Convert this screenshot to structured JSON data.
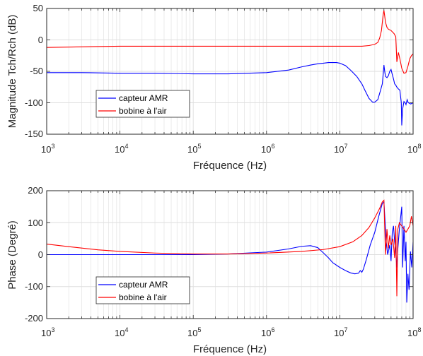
{
  "chart_data": [
    {
      "type": "line",
      "xscale": "log",
      "xlim": [
        1000,
        100000000
      ],
      "ylim": [
        -150,
        50
      ],
      "xlabel": "Fréquence (Hz)",
      "ylabel": "Magnitude Tch/Rch (dB)",
      "xticks": [
        {
          "base": "10",
          "exp": "3"
        },
        {
          "base": "10",
          "exp": "4"
        },
        {
          "base": "10",
          "exp": "5"
        },
        {
          "base": "10",
          "exp": "6"
        },
        {
          "base": "10",
          "exp": "7"
        },
        {
          "base": "10",
          "exp": "8"
        }
      ],
      "yticks": [
        "50",
        "0",
        "-50",
        "-100",
        "-150"
      ],
      "grid": true,
      "legend_location": "lower-left",
      "series": [
        {
          "name": "capteur AMR",
          "color": "#0000ff",
          "x": [
            1000,
            3000,
            10000,
            30000,
            100000,
            300000,
            1000000,
            2000000,
            3000000,
            4000000,
            5000000,
            6000000,
            7000000,
            8000000,
            9000000,
            10000000,
            12000000,
            14000000,
            17000000,
            20000000,
            22000000,
            25000000,
            28000000,
            30000000,
            33000000,
            36000000,
            38000000,
            39000000,
            40000000,
            41000000,
            42000000,
            44000000,
            46000000,
            48000000,
            50000000,
            52000000,
            54000000,
            56000000,
            58000000,
            60000000,
            63000000,
            66000000,
            69000000,
            70000000,
            72000000,
            75000000,
            78000000,
            80000000,
            83000000,
            86000000,
            90000000,
            93000000,
            96000000,
            100000000
          ],
          "y": [
            -52,
            -52,
            -53,
            -53,
            -54,
            -54,
            -52,
            -48,
            -43,
            -40,
            -38,
            -37,
            -36,
            -36,
            -36,
            -37,
            -41,
            -48,
            -58,
            -70,
            -80,
            -93,
            -99,
            -99,
            -95,
            -80,
            -70,
            -55,
            -40,
            -50,
            -58,
            -60,
            -57,
            -50,
            -47,
            -55,
            -62,
            -70,
            -72,
            -75,
            -78,
            -80,
            -100,
            -136,
            -110,
            -98,
            -100,
            -103,
            -95,
            -100,
            -101,
            -102,
            -101,
            -100
          ]
        },
        {
          "name": "bobine à l'air",
          "color": "#ff0000",
          "x": [
            1000,
            3000,
            10000,
            30000,
            100000,
            300000,
            1000000,
            3000000,
            6000000,
            10000000,
            15000000,
            20000000,
            25000000,
            30000000,
            33000000,
            35000000,
            37000000,
            39000000,
            40000000,
            41000000,
            42000000,
            44000000,
            46000000,
            50000000,
            55000000,
            58000000,
            60000000,
            63000000,
            66000000,
            70000000,
            75000000,
            80000000,
            85000000,
            90000000,
            95000000,
            100000000
          ],
          "y": [
            -12,
            -11,
            -10,
            -10,
            -10,
            -10,
            -10,
            -10,
            -10,
            -10,
            -10,
            -10,
            -9,
            -7,
            -4,
            3,
            15,
            40,
            47,
            38,
            28,
            20,
            17,
            15,
            10,
            5,
            -35,
            -20,
            -30,
            -45,
            -53,
            -52,
            -42,
            -30,
            -25,
            -22
          ]
        }
      ]
    },
    {
      "type": "line",
      "xscale": "log",
      "xlim": [
        1000,
        100000000
      ],
      "ylim": [
        -200,
        200
      ],
      "xlabel": "Fréquence (Hz)",
      "ylabel": "Phase (Degré)",
      "xticks": [
        {
          "base": "10",
          "exp": "3"
        },
        {
          "base": "10",
          "exp": "4"
        },
        {
          "base": "10",
          "exp": "5"
        },
        {
          "base": "10",
          "exp": "6"
        },
        {
          "base": "10",
          "exp": "7"
        },
        {
          "base": "10",
          "exp": "8"
        }
      ],
      "yticks": [
        "200",
        "100",
        "0",
        "-100",
        "-200"
      ],
      "grid": true,
      "legend_location": "lower-left",
      "series": [
        {
          "name": "capteur AMR",
          "color": "#0000ff",
          "x": [
            1000,
            3000,
            10000,
            30000,
            100000,
            300000,
            1000000,
            2000000,
            3000000,
            4000000,
            5000000,
            6000000,
            7000000,
            8000000,
            10000000,
            12000000,
            14000000,
            16000000,
            18000000,
            19000000,
            20000000,
            21000000,
            23000000,
            26000000,
            30000000,
            34000000,
            38000000,
            40000000,
            42000000,
            43000000,
            45000000,
            48000000,
            50000000,
            52000000,
            54000000,
            56000000,
            58000000,
            60000000,
            62000000,
            65000000,
            70000000,
            72000000,
            75000000,
            78000000,
            80000000,
            82000000,
            85000000,
            88000000,
            92000000,
            96000000,
            100000000
          ],
          "y": [
            0,
            0,
            0,
            0,
            0,
            2,
            8,
            18,
            26,
            28,
            22,
            5,
            -10,
            -25,
            -40,
            -50,
            -57,
            -60,
            -58,
            -50,
            -55,
            -45,
            -15,
            30,
            70,
            120,
            160,
            165,
            80,
            40,
            0,
            30,
            -20,
            70,
            90,
            40,
            10,
            -40,
            20,
            80,
            150,
            -40,
            90,
            -20,
            40,
            -150,
            -60,
            -110,
            10,
            -40,
            40
          ]
        },
        {
          "name": "bobine à l'air",
          "color": "#ff0000",
          "x": [
            1000,
            2000,
            5000,
            10000,
            30000,
            100000,
            300000,
            1000000,
            3000000,
            6000000,
            10000000,
            15000000,
            20000000,
            25000000,
            30000000,
            35000000,
            38000000,
            40000000,
            42000000,
            44000000,
            46000000,
            48000000,
            50000000,
            53000000,
            56000000,
            58000000,
            60000000,
            62000000,
            65000000,
            70000000,
            75000000,
            80000000,
            85000000,
            90000000,
            95000000,
            100000000
          ],
          "y": [
            33,
            25,
            15,
            10,
            5,
            2,
            2,
            5,
            10,
            16,
            25,
            40,
            60,
            85,
            115,
            145,
            165,
            170,
            0,
            80,
            20,
            60,
            30,
            50,
            -10,
            90,
            -130,
            80,
            100,
            90,
            80,
            70,
            80,
            90,
            120,
            90
          ]
        }
      ]
    }
  ]
}
